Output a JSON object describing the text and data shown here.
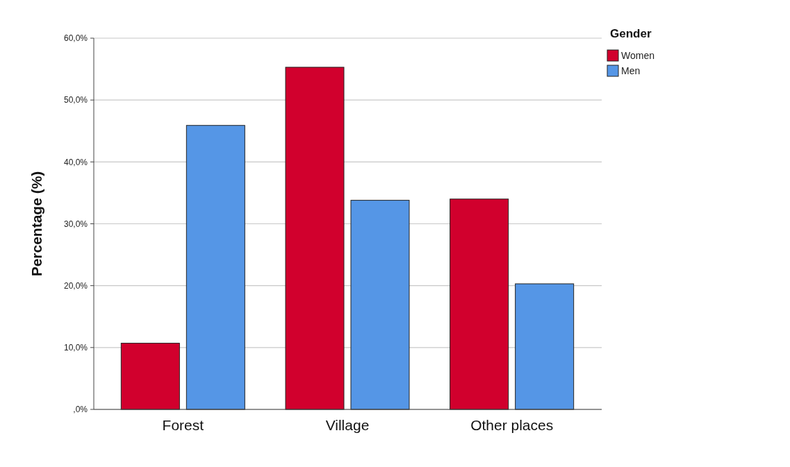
{
  "chart_data": {
    "type": "bar",
    "ylabel": "Percentage (%)",
    "legend_title": "Gender",
    "categories": [
      "Forest",
      "Village",
      "Other places"
    ],
    "series": [
      {
        "name": "Women",
        "color": "#d1002d",
        "values": [
          10.7,
          55.3,
          34.0
        ]
      },
      {
        "name": "Men",
        "color": "#5596e6",
        "values": [
          45.9,
          33.8,
          20.3
        ]
      }
    ],
    "ylim": [
      0,
      60
    ],
    "yticks": [
      {
        "value": 0,
        "label": ",0%"
      },
      {
        "value": 10,
        "label": "10,0%"
      },
      {
        "value": 20,
        "label": "20,0%"
      },
      {
        "value": 30,
        "label": "30,0%"
      },
      {
        "value": 40,
        "label": "40,0%"
      },
      {
        "value": 50,
        "label": "50,0%"
      },
      {
        "value": 60,
        "label": "60,0%"
      }
    ],
    "grid": "y",
    "legend": "top right"
  }
}
